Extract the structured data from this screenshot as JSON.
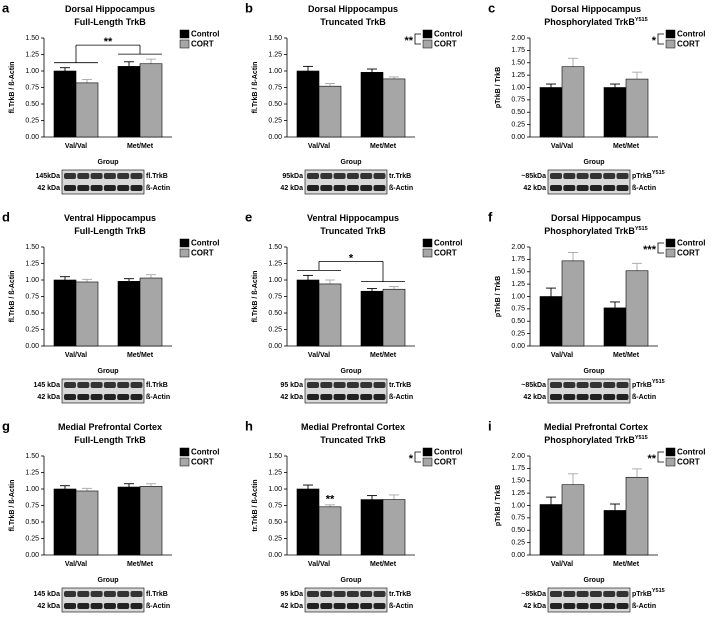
{
  "chart_data": [
    {
      "type": "bar",
      "letter": "a",
      "title": [
        "Dorsal Hippocampus",
        "Full-Length TrkB"
      ],
      "ylabel": "fl.TrkB / ß-Actin",
      "xlabel": "Group",
      "categories": [
        "Val/Val",
        "Met/Met"
      ],
      "series": [
        {
          "name": "Control",
          "color": "#000000",
          "values": [
            1.0,
            1.07
          ],
          "errors": [
            0.05,
            0.07
          ]
        },
        {
          "name": "CORT",
          "color": "#a6a6a6",
          "values": [
            0.82,
            1.11
          ],
          "errors": [
            0.05,
            0.07
          ]
        }
      ],
      "ylim": [
        0,
        1.5
      ],
      "yticks": [
        {
          "value": 0,
          "label": "0.00"
        },
        {
          "value": 0.25,
          "label": "0.25"
        },
        {
          "value": 0.5,
          "label": "0.50"
        },
        {
          "value": 0.75,
          "label": "0.75"
        },
        {
          "value": 1,
          "label": "1.00"
        },
        {
          "value": 1.25,
          "label": "1.25"
        },
        {
          "value": 1.5,
          "label": "1.50"
        }
      ],
      "annotations": [
        {
          "text": "**",
          "kind": "groups"
        }
      ],
      "blot": [
        {
          "kda": "145kDa",
          "label": "fl.TrkB"
        },
        {
          "kda": "42 kDa",
          "label": "ß-Actin"
        }
      ]
    },
    {
      "type": "bar",
      "letter": "b",
      "title": [
        "Dorsal Hippocampus",
        "Truncated TrkB"
      ],
      "ylabel": "fl.TrkB / ß-Actin",
      "xlabel": "Group",
      "categories": [
        "Val/Val",
        "Met/Met"
      ],
      "series": [
        {
          "name": "Control",
          "color": "#000000",
          "values": [
            1.0,
            0.98
          ],
          "errors": [
            0.07,
            0.05
          ]
        },
        {
          "name": "CORT",
          "color": "#a6a6a6",
          "values": [
            0.77,
            0.88
          ],
          "errors": [
            0.04,
            0.03
          ]
        }
      ],
      "ylim": [
        0,
        1.5
      ],
      "yticks": [
        {
          "value": 0,
          "label": "0.00"
        },
        {
          "value": 0.25,
          "label": "0.25"
        },
        {
          "value": 0.5,
          "label": "0.50"
        },
        {
          "value": 0.75,
          "label": "0.75"
        },
        {
          "value": 1,
          "label": "1.00"
        },
        {
          "value": 1.25,
          "label": "1.25"
        },
        {
          "value": 1.5,
          "label": "1.50"
        }
      ],
      "annotations": [
        {
          "text": "**",
          "kind": "legend"
        }
      ],
      "blot": [
        {
          "kda": "95kDa",
          "label": "tr.TrkB"
        },
        {
          "kda": "42 kDa",
          "label": "ß-Actin"
        }
      ]
    },
    {
      "type": "bar",
      "letter": "c",
      "title": [
        "Dorsal Hippocampus",
        "Phosphorylated TrkB"
      ],
      "title_sup": "Y515",
      "ylabel": "pTrkB / TrkB",
      "xlabel": "Group",
      "categories": [
        "Val/Val",
        "Met/Met"
      ],
      "series": [
        {
          "name": "Control",
          "color": "#000000",
          "values": [
            1.0,
            1.0
          ],
          "errors": [
            0.07,
            0.07
          ]
        },
        {
          "name": "CORT",
          "color": "#a6a6a6",
          "values": [
            1.42,
            1.17
          ],
          "errors": [
            0.17,
            0.14
          ]
        }
      ],
      "ylim": [
        0,
        2
      ],
      "yticks": [
        {
          "value": 0,
          "label": "0.00"
        },
        {
          "value": 0.25,
          "label": "0.25"
        },
        {
          "value": 0.5,
          "label": "0.50"
        },
        {
          "value": 0.75,
          "label": "0.75"
        },
        {
          "value": 1,
          "label": "1.00"
        },
        {
          "value": 1.25,
          "label": "1.25"
        },
        {
          "value": 1.5,
          "label": "1.50"
        },
        {
          "value": 1.75,
          "label": "1.75"
        },
        {
          "value": 2,
          "label": "2.00"
        }
      ],
      "annotations": [
        {
          "text": "*",
          "kind": "legend"
        }
      ],
      "blot": [
        {
          "kda": "~85kDa",
          "label": "pTrkB",
          "sup": "Y515"
        },
        {
          "kda": "42 kDa",
          "label": "ß-Actin"
        }
      ]
    },
    {
      "type": "bar",
      "letter": "d",
      "title": [
        "Ventral Hippocampus",
        "Full-Length TrkB"
      ],
      "ylabel": "fl.TrkB / ß-Actin",
      "xlabel": "Group",
      "categories": [
        "Val/Val",
        "Met/Met"
      ],
      "series": [
        {
          "name": "Control",
          "color": "#000000",
          "values": [
            1.0,
            0.98
          ],
          "errors": [
            0.05,
            0.04
          ]
        },
        {
          "name": "CORT",
          "color": "#a6a6a6",
          "values": [
            0.97,
            1.03
          ],
          "errors": [
            0.04,
            0.05
          ]
        }
      ],
      "ylim": [
        0,
        1.5
      ],
      "yticks": [
        {
          "value": 0,
          "label": "0.00"
        },
        {
          "value": 0.25,
          "label": "0.25"
        },
        {
          "value": 0.5,
          "label": "0.50"
        },
        {
          "value": 0.75,
          "label": "0.75"
        },
        {
          "value": 1,
          "label": "1.00"
        },
        {
          "value": 1.25,
          "label": "1.25"
        },
        {
          "value": 1.5,
          "label": "1.50"
        }
      ],
      "annotations": [],
      "blot": [
        {
          "kda": "145 kDa",
          "label": "fl.TrkB"
        },
        {
          "kda": "42 kDa",
          "label": "ß-Actin"
        }
      ]
    },
    {
      "type": "bar",
      "letter": "e",
      "title": [
        "Ventral Hippocampus",
        "Truncated TrkB"
      ],
      "ylabel": "fl.TrkB / ß-Actin",
      "xlabel": "Group",
      "categories": [
        "Val/Val",
        "Met/Met"
      ],
      "series": [
        {
          "name": "Control",
          "color": "#000000",
          "values": [
            1.0,
            0.83
          ],
          "errors": [
            0.07,
            0.04
          ]
        },
        {
          "name": "CORT",
          "color": "#a6a6a6",
          "values": [
            0.94,
            0.86
          ],
          "errors": [
            0.06,
            0.04
          ]
        }
      ],
      "ylim": [
        0,
        1.5
      ],
      "yticks": [
        {
          "value": 0,
          "label": "0.00"
        },
        {
          "value": 0.25,
          "label": "0.25"
        },
        {
          "value": 0.5,
          "label": "0.50"
        },
        {
          "value": 0.75,
          "label": "0.75"
        },
        {
          "value": 1,
          "label": "1.00"
        },
        {
          "value": 1.25,
          "label": "1.25"
        },
        {
          "value": 1.5,
          "label": "1.50"
        }
      ],
      "annotations": [
        {
          "text": "*",
          "kind": "groups"
        }
      ],
      "blot": [
        {
          "kda": "95 kDa",
          "label": "tr.TrkB"
        },
        {
          "kda": "42 kDa",
          "label": "ß-Actin"
        }
      ]
    },
    {
      "type": "bar",
      "letter": "f",
      "title": [
        "Dorsal Hippocampus",
        "Phosphorylated TrkB"
      ],
      "title_sup": "Y515",
      "ylabel": "pTrkB / TrkB",
      "xlabel": "Group",
      "categories": [
        "Val/Val",
        "Met/Met"
      ],
      "series": [
        {
          "name": "Control",
          "color": "#000000",
          "values": [
            1.0,
            0.77
          ],
          "errors": [
            0.17,
            0.12
          ]
        },
        {
          "name": "CORT",
          "color": "#a6a6a6",
          "values": [
            1.72,
            1.52
          ],
          "errors": [
            0.17,
            0.15
          ]
        }
      ],
      "ylim": [
        0,
        2
      ],
      "yticks": [
        {
          "value": 0,
          "label": "0.00"
        },
        {
          "value": 0.25,
          "label": "0.25"
        },
        {
          "value": 0.5,
          "label": "0.50"
        },
        {
          "value": 0.75,
          "label": "0.75"
        },
        {
          "value": 1,
          "label": "1.00"
        },
        {
          "value": 1.25,
          "label": "1.25"
        },
        {
          "value": 1.5,
          "label": "1.50"
        },
        {
          "value": 1.75,
          "label": "1.75"
        },
        {
          "value": 2,
          "label": "2.00"
        }
      ],
      "annotations": [
        {
          "text": "***",
          "kind": "legend"
        }
      ],
      "blot": [
        {
          "kda": "~85kDa",
          "label": "pTrkB",
          "sup": "Y515"
        },
        {
          "kda": "42 kDa",
          "label": "ß-Actin"
        }
      ]
    },
    {
      "type": "bar",
      "letter": "g",
      "title": [
        "Medial Prefrontal Cortex",
        "Full-Length TrkB"
      ],
      "ylabel": "fl.TrkB / ß-Actin",
      "xlabel": "Group",
      "categories": [
        "Val/Val",
        "Met/Met"
      ],
      "series": [
        {
          "name": "Control",
          "color": "#000000",
          "values": [
            1.0,
            1.03
          ],
          "errors": [
            0.05,
            0.05
          ]
        },
        {
          "name": "CORT",
          "color": "#a6a6a6",
          "values": [
            0.97,
            1.04
          ],
          "errors": [
            0.04,
            0.04
          ]
        }
      ],
      "ylim": [
        0,
        1.5
      ],
      "yticks": [
        {
          "value": 0,
          "label": "0.00"
        },
        {
          "value": 0.25,
          "label": "0.25"
        },
        {
          "value": 0.5,
          "label": "0.50"
        },
        {
          "value": 0.75,
          "label": "0.75"
        },
        {
          "value": 1,
          "label": "1.00"
        },
        {
          "value": 1.25,
          "label": "1.25"
        },
        {
          "value": 1.5,
          "label": "1.50"
        }
      ],
      "annotations": [],
      "blot": [
        {
          "kda": "145 kDa",
          "label": "fl.TrkB"
        },
        {
          "kda": "42 kDa",
          "label": "ß-Actin"
        }
      ]
    },
    {
      "type": "bar",
      "letter": "h",
      "title": [
        "Medial Prefrontal Cortex",
        "Truncated TrkB"
      ],
      "ylabel": "tr.TrkB / ß-Actin",
      "xlabel": "Group",
      "categories": [
        "Val/Val",
        "Met/Met"
      ],
      "series": [
        {
          "name": "Control",
          "color": "#000000",
          "values": [
            1.0,
            0.84
          ],
          "errors": [
            0.06,
            0.06
          ]
        },
        {
          "name": "CORT",
          "color": "#a6a6a6",
          "values": [
            0.73,
            0.84
          ],
          "errors": [
            0.03,
            0.07
          ]
        }
      ],
      "ylim": [
        0,
        1.5
      ],
      "yticks": [
        {
          "value": 0,
          "label": "0.00"
        },
        {
          "value": 0.25,
          "label": "0.25"
        },
        {
          "value": 0.5,
          "label": "0.50"
        },
        {
          "value": 0.75,
          "label": "0.75"
        },
        {
          "value": 1,
          "label": "1.00"
        },
        {
          "value": 1.25,
          "label": "1.25"
        },
        {
          "value": 1.5,
          "label": "1.50"
        }
      ],
      "annotations": [
        {
          "text": "*",
          "kind": "legend"
        },
        {
          "text": "**",
          "kind": "bar",
          "series": 1,
          "category": 0
        }
      ],
      "blot": [
        {
          "kda": "95 kDa",
          "label": "tr.TrkB"
        },
        {
          "kda": "42 kDa",
          "label": "ß-Actin"
        }
      ]
    },
    {
      "type": "bar",
      "letter": "i",
      "title": [
        "Medial Prefrontal Cortex",
        "Phosphorylated TrkB"
      ],
      "title_sup": "Y515",
      "ylabel": "pTrkB / TrkB",
      "xlabel": "Group",
      "categories": [
        "Val/Val",
        "Met/Met"
      ],
      "series": [
        {
          "name": "Control",
          "color": "#000000",
          "values": [
            1.02,
            0.9
          ],
          "errors": [
            0.15,
            0.13
          ]
        },
        {
          "name": "CORT",
          "color": "#a6a6a6",
          "values": [
            1.42,
            1.57
          ],
          "errors": [
            0.22,
            0.17
          ]
        }
      ],
      "ylim": [
        0,
        2
      ],
      "yticks": [
        {
          "value": 0,
          "label": "0.00"
        },
        {
          "value": 0.25,
          "label": "0.25"
        },
        {
          "value": 0.5,
          "label": "0.50"
        },
        {
          "value": 0.75,
          "label": "0.75"
        },
        {
          "value": 1,
          "label": "1.00"
        },
        {
          "value": 1.25,
          "label": "1.25"
        },
        {
          "value": 1.5,
          "label": "1.50"
        },
        {
          "value": 1.75,
          "label": "1.75"
        },
        {
          "value": 2,
          "label": "2.00"
        }
      ],
      "annotations": [
        {
          "text": "**",
          "kind": "legend"
        }
      ],
      "blot": [
        {
          "kda": "~85kDa",
          "label": "pTrkB",
          "sup": "Y515"
        },
        {
          "kda": "42 kDa",
          "label": "ß-Actin"
        }
      ]
    }
  ]
}
